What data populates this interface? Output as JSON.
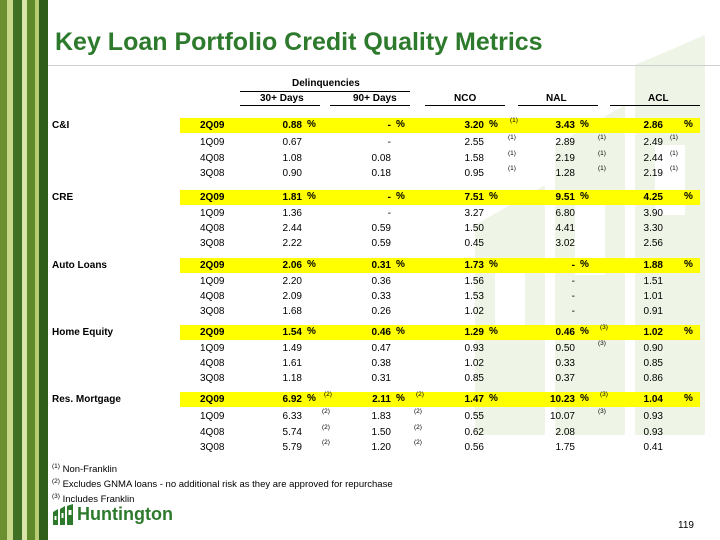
{
  "title": "Key Loan Portfolio Credit Quality Metrics",
  "headers": {
    "group": "Delinquencies",
    "d30": "30+ Days",
    "d90": "90+ Days",
    "nco": "NCO",
    "nal": "NAL",
    "acl": "ACL"
  },
  "rows": [
    {
      "cat": "C&I",
      "q": "2Q09",
      "d30": "0.88",
      "d90": "-",
      "nco": "3.20",
      "nco_fn": "(1)",
      "nal": "3.43",
      "nal_fn": "",
      "acl": "2.86",
      "acl_fn": ""
    },
    {
      "cat": "",
      "q": "1Q09",
      "d30": "0.67",
      "d90": "-",
      "nco": "2.55",
      "nco_fn": "(1)",
      "nal": "2.89",
      "nal_fn": "(1)",
      "acl": "2.49",
      "acl_fn": "(1)"
    },
    {
      "cat": "",
      "q": "4Q08",
      "d30": "1.08",
      "d90": "0.08",
      "nco": "1.58",
      "nco_fn": "(1)",
      "nal": "2.19",
      "nal_fn": "(1)",
      "acl": "2.44",
      "acl_fn": "(1)"
    },
    {
      "cat": "",
      "q": "3Q08",
      "d30": "0.90",
      "d90": "0.18",
      "nco": "0.95",
      "nco_fn": "(1)",
      "nal": "1.28",
      "nal_fn": "(1)",
      "acl": "2.19",
      "acl_fn": "(1)"
    },
    {
      "cat": "CRE",
      "q": "2Q09",
      "d30": "1.81",
      "d90": "-",
      "nco": "7.51",
      "nal": "9.51",
      "acl": "4.25"
    },
    {
      "cat": "",
      "q": "1Q09",
      "d30": "1.36",
      "d90": "-",
      "nco": "3.27",
      "nal": "6.80",
      "acl": "3.90"
    },
    {
      "cat": "",
      "q": "4Q08",
      "d30": "2.44",
      "d90": "0.59",
      "nco": "1.50",
      "nal": "4.41",
      "acl": "3.30"
    },
    {
      "cat": "",
      "q": "3Q08",
      "d30": "2.22",
      "d90": "0.59",
      "nco": "0.45",
      "nal": "3.02",
      "acl": "2.56"
    },
    {
      "cat": "Auto Loans",
      "q": "2Q09",
      "d30": "2.06",
      "d90": "0.31",
      "nco": "1.73",
      "nal": "-",
      "acl": "1.88"
    },
    {
      "cat": "",
      "q": "1Q09",
      "d30": "2.20",
      "d90": "0.36",
      "nco": "1.56",
      "nal": "-",
      "acl": "1.51"
    },
    {
      "cat": "",
      "q": "4Q08",
      "d30": "2.09",
      "d90": "0.33",
      "nco": "1.53",
      "nal": "-",
      "acl": "1.01"
    },
    {
      "cat": "",
      "q": "3Q08",
      "d30": "1.68",
      "d90": "0.26",
      "nco": "1.02",
      "nal": "-",
      "acl": "0.91"
    },
    {
      "cat": "Home Equity",
      "q": "2Q09",
      "d30": "1.54",
      "d90": "0.46",
      "nco": "1.29",
      "nal": "0.46",
      "nal_fn": "(3)",
      "acl": "1.02"
    },
    {
      "cat": "",
      "q": "1Q09",
      "d30": "1.49",
      "d90": "0.47",
      "nco": "0.93",
      "nal": "0.50",
      "nal_fn": "(3)",
      "acl": "0.90"
    },
    {
      "cat": "",
      "q": "4Q08",
      "d30": "1.61",
      "d90": "0.38",
      "nco": "1.02",
      "nal": "0.33",
      "acl": "0.85"
    },
    {
      "cat": "",
      "q": "3Q08",
      "d30": "1.18",
      "d90": "0.31",
      "nco": "0.85",
      "nal": "0.37",
      "acl": "0.86"
    },
    {
      "cat": "Res. Mortgage",
      "q": "2Q09",
      "d30": "6.92",
      "d30_fn": "(2)",
      "d90": "2.11",
      "d90_fn": "(2)",
      "nco": "1.47",
      "nal": "10.23",
      "nal_fn": "(3)",
      "acl": "1.04"
    },
    {
      "cat": "",
      "q": "1Q09",
      "d30": "6.33",
      "d30_fn": "(2)",
      "d90": "1.83",
      "d90_fn": "(2)",
      "nco": "0.55",
      "nal": "10.07",
      "nal_fn": "(3)",
      "acl": "0.93"
    },
    {
      "cat": "",
      "q": "4Q08",
      "d30": "5.74",
      "d30_fn": "(2)",
      "d90": "1.50",
      "d90_fn": "(2)",
      "nco": "0.62",
      "nal": "2.08",
      "acl": "0.93"
    },
    {
      "cat": "",
      "q": "3Q08",
      "d30": "5.79",
      "d30_fn": "(2)",
      "d90": "1.20",
      "d90_fn": "(2)",
      "nco": "0.56",
      "nal": "1.75",
      "acl": "0.41"
    }
  ],
  "pct": "%",
  "footnotes": [
    {
      "mark": "(1)",
      "text": " Non-Franklin"
    },
    {
      "mark": "(2)",
      "text": " Excludes GNMA loans - no additional risk as they are approved for repurchase"
    },
    {
      "mark": "(3)",
      "text": " Includes Franklin"
    }
  ],
  "logo_text": "Huntington",
  "page_number": "119",
  "colors": {
    "title": "#2d7a2d",
    "highlight": "#ffff00",
    "brand": "#2d7a2d"
  }
}
